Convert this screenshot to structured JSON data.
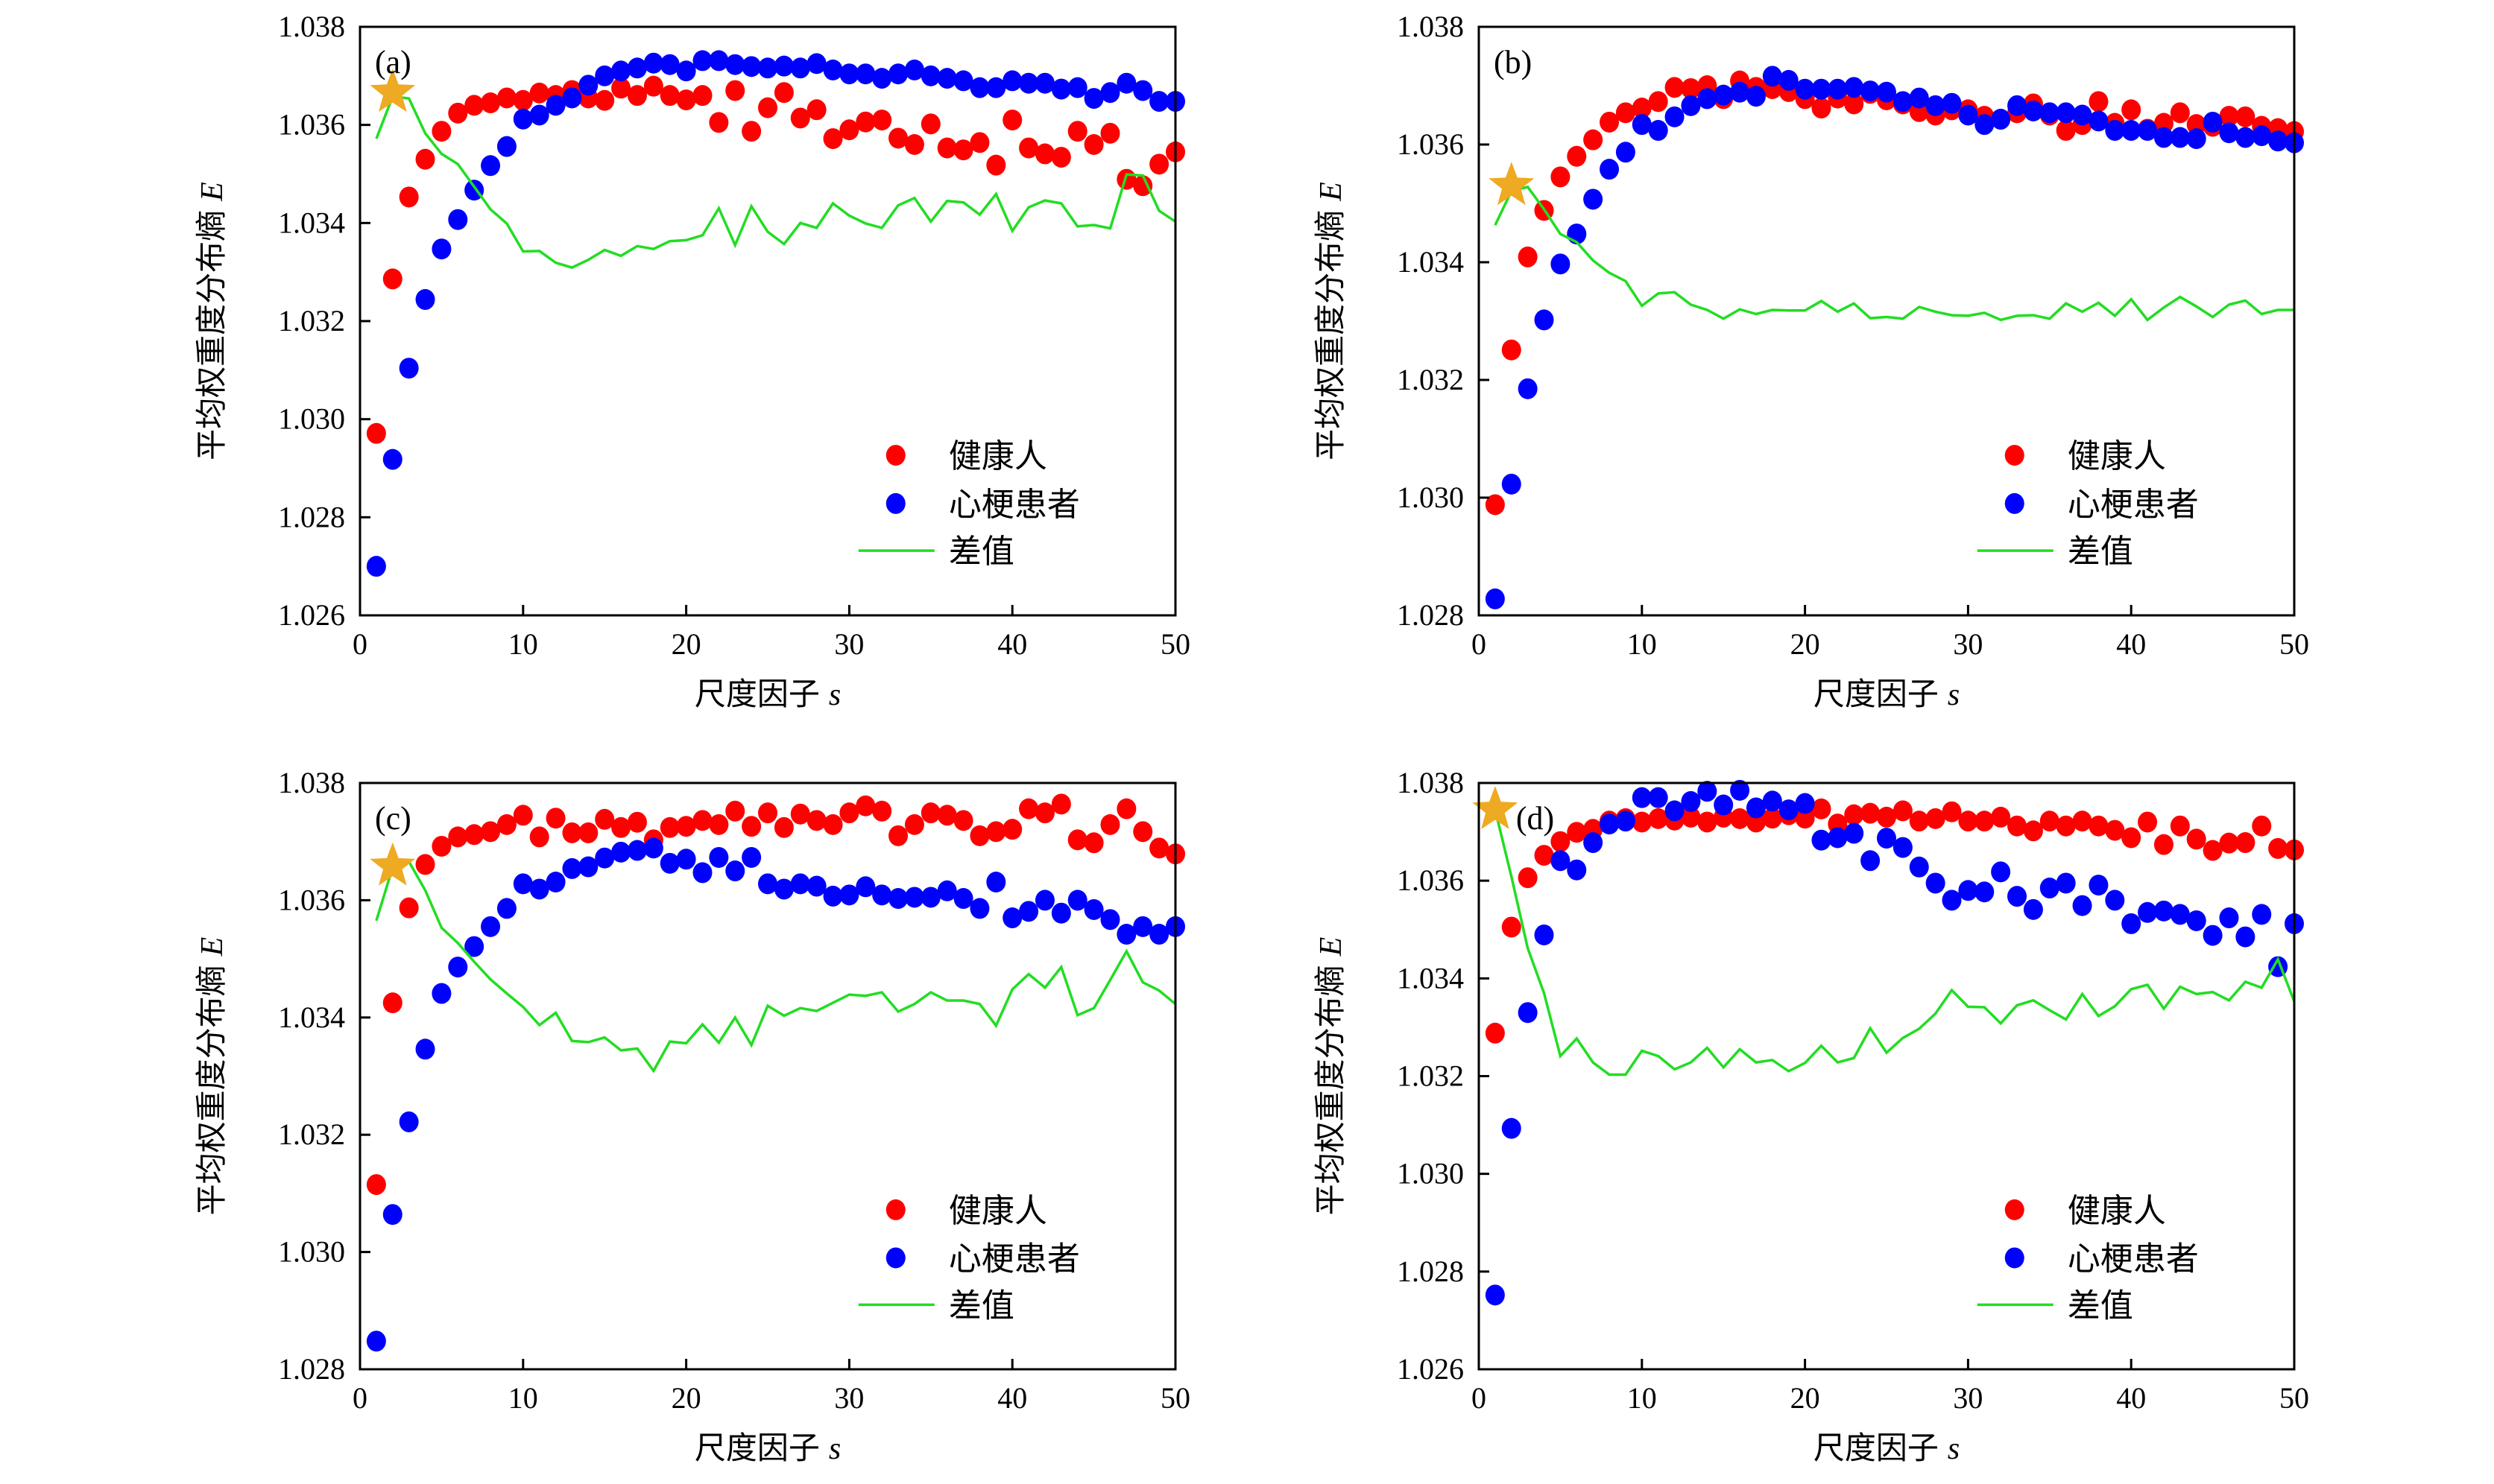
{
  "chart_data": [
    {
      "type": "scatter",
      "panel_label": "(a)",
      "xlabel": "尺度因子",
      "xlabel_var": "s",
      "ylabel": "平均权重度分布熵",
      "ylabel_var": "E",
      "xlim": [
        0,
        50
      ],
      "ylim": [
        1.026,
        1.038
      ],
      "xticks": [
        "0",
        "10",
        "20",
        "30",
        "40",
        "50"
      ],
      "yticks": [
        "1.026",
        "1.028",
        "1.030",
        "1.032",
        "1.034",
        "1.036",
        "1.038"
      ],
      "legend": "lower-right",
      "grid": false,
      "x": [
        1,
        2,
        3,
        4,
        5,
        6,
        7,
        8,
        9,
        10,
        11,
        12,
        13,
        14,
        15,
        16,
        17,
        18,
        19,
        20,
        21,
        22,
        23,
        24,
        25,
        26,
        27,
        28,
        29,
        30,
        31,
        32,
        33,
        34,
        35,
        36,
        37,
        38,
        39,
        40,
        41,
        42,
        43,
        44,
        45,
        46,
        47,
        48,
        49,
        50
      ],
      "series": [
        {
          "name": "健康人",
          "kind": "scatter",
          "color": "#ff0000",
          "values": [
            1.02971,
            1.03286,
            1.03453,
            1.0353,
            1.03587,
            1.03624,
            1.0364,
            1.03645,
            1.03655,
            1.0365,
            1.03665,
            1.0366,
            1.0367,
            1.03655,
            1.0365,
            1.03675,
            1.0366,
            1.03679,
            1.0366,
            1.03651,
            1.0366,
            1.03605,
            1.0367,
            1.03587,
            1.03635,
            1.03666,
            1.03614,
            1.03631,
            1.03572,
            1.0359,
            1.03606,
            1.0361,
            1.03573,
            1.0356,
            1.03602,
            1.03553,
            1.03549,
            1.03564,
            1.03518,
            1.0361,
            1.03553,
            1.03541,
            1.03534,
            1.03587,
            1.0356,
            1.03583,
            1.03489,
            1.03476,
            1.0352,
            1.03545
          ]
        },
        {
          "name": "心梗患者",
          "kind": "scatter",
          "color": "#0000ff",
          "values": [
            1.027,
            1.02918,
            1.03104,
            1.03244,
            1.03347,
            1.03407,
            1.03467,
            1.03517,
            1.03556,
            1.03612,
            1.0362,
            1.0364,
            1.03655,
            1.03681,
            1.037,
            1.0371,
            1.03716,
            1.03726,
            1.03723,
            1.0371,
            1.03731,
            1.03731,
            1.03723,
            1.03719,
            1.03716,
            1.0372,
            1.03716,
            1.03725,
            1.03712,
            1.03704,
            1.03704,
            1.03695,
            1.03704,
            1.03712,
            1.037,
            1.03695,
            1.0369,
            1.03676,
            1.03676,
            1.0369,
            1.03685,
            1.03685,
            1.03673,
            1.03676,
            1.03654,
            1.03666,
            1.03685,
            1.0367,
            1.03648,
            1.03648
          ]
        },
        {
          "name": "差值",
          "kind": "line",
          "color": "#22dd22",
          "values": [
            1.03572,
            1.03658,
            1.03654,
            1.03583,
            1.03541,
            1.0352,
            1.03474,
            1.03428,
            1.03399,
            1.03342,
            1.03343,
            1.03319,
            1.03309,
            1.03325,
            1.03345,
            1.03333,
            1.03353,
            1.03347,
            1.03363,
            1.03365,
            1.03375,
            1.0343,
            1.03355,
            1.03434,
            1.03382,
            1.03357,
            1.034,
            1.0339,
            1.0344,
            1.03415,
            1.03399,
            1.0339,
            1.03436,
            1.03451,
            1.03403,
            1.03445,
            1.03442,
            1.03417,
            1.03459,
            1.03384,
            1.03432,
            1.03446,
            1.0344,
            1.03393,
            1.03396,
            1.03389,
            1.03499,
            1.03497,
            1.03425,
            1.03403
          ]
        }
      ],
      "star": {
        "x": 2,
        "y": 1.03666,
        "color": "#eeaa22"
      }
    },
    {
      "type": "scatter",
      "panel_label": "(b)",
      "xlabel": "尺度因子",
      "xlabel_var": "s",
      "ylabel": "平均权重度分布熵",
      "ylabel_var": "E",
      "xlim": [
        0,
        50
      ],
      "ylim": [
        1.028,
        1.038
      ],
      "xticks": [
        "0",
        "10",
        "20",
        "30",
        "40",
        "50"
      ],
      "yticks": [
        "1.028",
        "1.030",
        "1.032",
        "1.034",
        "1.036",
        "1.038"
      ],
      "legend": "lower-right",
      "grid": false,
      "x": [
        1,
        2,
        3,
        4,
        5,
        6,
        7,
        8,
        9,
        10,
        11,
        12,
        13,
        14,
        15,
        16,
        17,
        18,
        19,
        20,
        21,
        22,
        23,
        24,
        25,
        26,
        27,
        28,
        29,
        30,
        31,
        32,
        33,
        34,
        35,
        36,
        37,
        38,
        39,
        40,
        41,
        42,
        43,
        44,
        45,
        46,
        47,
        48,
        49,
        50
      ],
      "series": [
        {
          "name": "健康人",
          "kind": "scatter",
          "color": "#ff0000",
          "values": [
            1.02988,
            1.03251,
            1.03409,
            1.03488,
            1.03545,
            1.0358,
            1.03608,
            1.03638,
            1.03654,
            1.03662,
            1.03673,
            1.03697,
            1.03695,
            1.037,
            1.03678,
            1.03708,
            1.03697,
            1.03695,
            1.0369,
            1.03678,
            1.03662,
            1.03679,
            1.03669,
            1.03687,
            1.03676,
            1.03669,
            1.03656,
            1.0365,
            1.03659,
            1.03659,
            1.03648,
            1.03643,
            1.03654,
            1.03669,
            1.0365,
            1.03624,
            1.03634,
            1.03673,
            1.03636,
            1.03659,
            1.03626,
            1.03636,
            1.03654,
            1.03634,
            1.03631,
            1.03648,
            1.03647,
            1.03631,
            1.03627,
            1.03622
          ]
        },
        {
          "name": "心梗患者",
          "kind": "scatter",
          "color": "#0000ff",
          "values": [
            1.02828,
            1.03023,
            1.03185,
            1.03302,
            1.03397,
            1.03448,
            1.03507,
            1.03558,
            1.03587,
            1.03634,
            1.03624,
            1.03647,
            1.03666,
            1.03678,
            1.03684,
            1.03689,
            1.03682,
            1.03716,
            1.03709,
            1.03694,
            1.03694,
            1.03694,
            1.03697,
            1.03691,
            1.03689,
            1.03673,
            1.03679,
            1.03666,
            1.0367,
            1.0365,
            1.03634,
            1.03643,
            1.03666,
            1.03657,
            1.03654,
            1.03654,
            1.0365,
            1.0364,
            1.03624,
            1.03624,
            1.03624,
            1.03612,
            1.03612,
            1.0361,
            1.03638,
            1.0362,
            1.03612,
            1.03615,
            1.03606,
            1.03603
          ]
        },
        {
          "name": "差值",
          "kind": "line",
          "color": "#22dd22",
          "values": [
            1.03463,
            1.03521,
            1.03528,
            1.0349,
            1.03448,
            1.03434,
            1.03403,
            1.03382,
            1.03368,
            1.03326,
            1.03347,
            1.03349,
            1.03328,
            1.03319,
            1.03304,
            1.0332,
            1.03312,
            1.03319,
            1.03318,
            1.03318,
            1.03334,
            1.03316,
            1.0333,
            1.03305,
            1.03307,
            1.03304,
            1.03324,
            1.03316,
            1.0331,
            1.03309,
            1.03314,
            1.03302,
            1.03309,
            1.0331,
            1.03304,
            1.0333,
            1.03316,
            1.03331,
            1.03309,
            1.03337,
            1.03302,
            1.03323,
            1.03341,
            1.03325,
            1.03307,
            1.03328,
            1.03335,
            1.03312,
            1.03319,
            1.03319
          ]
        }
      ],
      "star": {
        "x": 2,
        "y": 1.0353,
        "color": "#eeaa22"
      }
    },
    {
      "type": "scatter",
      "panel_label": "(c)",
      "xlabel": "尺度因子",
      "xlabel_var": "s",
      "ylabel": "平均权重度分布熵",
      "ylabel_var": "E",
      "xlim": [
        0,
        50
      ],
      "ylim": [
        1.028,
        1.038
      ],
      "xticks": [
        "0",
        "10",
        "20",
        "30",
        "40",
        "50"
      ],
      "yticks": [
        "1.028",
        "1.030",
        "1.032",
        "1.034",
        "1.036",
        "1.038"
      ],
      "legend": "lower-right",
      "grid": false,
      "x": [
        1,
        2,
        3,
        4,
        5,
        6,
        7,
        8,
        9,
        10,
        11,
        12,
        13,
        14,
        15,
        16,
        17,
        18,
        19,
        20,
        21,
        22,
        23,
        24,
        25,
        26,
        27,
        28,
        29,
        30,
        31,
        32,
        33,
        34,
        35,
        36,
        37,
        38,
        39,
        40,
        41,
        42,
        43,
        44,
        45,
        46,
        47,
        48,
        49,
        50
      ],
      "series": [
        {
          "name": "健康人",
          "kind": "scatter",
          "color": "#ff0000",
          "values": [
            1.03115,
            1.03425,
            1.03587,
            1.03661,
            1.03692,
            1.03708,
            1.03712,
            1.03717,
            1.03729,
            1.03745,
            1.03708,
            1.0374,
            1.03715,
            1.03715,
            1.03738,
            1.03724,
            1.03733,
            1.03703,
            1.03724,
            1.03726,
            1.03736,
            1.03729,
            1.03752,
            1.03726,
            1.03749,
            1.03724,
            1.03747,
            1.03736,
            1.03729,
            1.03749,
            1.03761,
            1.03752,
            1.0371,
            1.03729,
            1.03749,
            1.03745,
            1.03736,
            1.0371,
            1.03717,
            1.03721,
            1.03756,
            1.03749,
            1.03764,
            1.03703,
            1.03698,
            1.03729,
            1.03756,
            1.03717,
            1.03689,
            1.03679
          ]
        },
        {
          "name": "心梗患者",
          "kind": "scatter",
          "color": "#0000ff",
          "values": [
            1.02848,
            1.03064,
            1.03222,
            1.03346,
            1.03441,
            1.03486,
            1.03521,
            1.03555,
            1.03586,
            1.03628,
            1.03619,
            1.03631,
            1.03654,
            1.03657,
            1.03672,
            1.03682,
            1.03685,
            1.03689,
            1.03663,
            1.0367,
            1.03647,
            1.03673,
            1.0365,
            1.03673,
            1.03628,
            1.03619,
            1.03628,
            1.03624,
            1.03607,
            1.03609,
            1.03623,
            1.03609,
            1.03603,
            1.03605,
            1.03605,
            1.03616,
            1.03603,
            1.03586,
            1.03631,
            1.0357,
            1.03581,
            1.036,
            1.03578,
            1.036,
            1.03584,
            1.03567,
            1.03542,
            1.03555,
            1.03542,
            1.03555
          ]
        },
        {
          "name": "差值",
          "kind": "line",
          "color": "#22dd22",
          "values": [
            1.03565,
            1.03656,
            1.03666,
            1.03617,
            1.03553,
            1.03527,
            1.03495,
            1.03465,
            1.03441,
            1.03418,
            1.03387,
            1.03408,
            1.0336,
            1.03358,
            1.03366,
            1.03344,
            1.03347,
            1.03309,
            1.03359,
            1.03356,
            1.03388,
            1.03357,
            1.034,
            1.03353,
            1.0342,
            1.03403,
            1.03416,
            1.03411,
            1.03425,
            1.03439,
            1.03437,
            1.03443,
            1.0341,
            1.03423,
            1.03443,
            1.03429,
            1.03429,
            1.03423,
            1.03386,
            1.03448,
            1.03474,
            1.03451,
            1.03486,
            1.03404,
            1.03416,
            1.03464,
            1.03513,
            1.0346,
            1.03446,
            1.03423
          ]
        }
      ],
      "star": {
        "x": 2,
        "y": 1.03658,
        "color": "#eeaa22"
      }
    },
    {
      "type": "scatter",
      "panel_label": "(d)",
      "xlabel": "尺度因子",
      "xlabel_var": "s",
      "ylabel": "平均权重度分布熵",
      "ylabel_var": "E",
      "xlim": [
        0,
        50
      ],
      "ylim": [
        1.026,
        1.038
      ],
      "xticks": [
        "0",
        "10",
        "20",
        "30",
        "40",
        "50"
      ],
      "yticks": [
        "1.026",
        "1.028",
        "1.030",
        "1.032",
        "1.034",
        "1.036",
        "1.038"
      ],
      "legend": "lower-right",
      "grid": false,
      "x": [
        1,
        2,
        3,
        4,
        5,
        6,
        7,
        8,
        9,
        10,
        11,
        12,
        13,
        14,
        15,
        16,
        17,
        18,
        19,
        20,
        21,
        22,
        23,
        24,
        25,
        26,
        27,
        28,
        29,
        30,
        31,
        32,
        33,
        34,
        35,
        36,
        37,
        38,
        39,
        40,
        41,
        42,
        43,
        44,
        45,
        46,
        47,
        48,
        49,
        50
      ],
      "series": [
        {
          "name": "健康人",
          "kind": "scatter",
          "color": "#ff0000",
          "values": [
            1.03288,
            1.03505,
            1.03606,
            1.03652,
            1.0368,
            1.03699,
            1.03705,
            1.03722,
            1.03727,
            1.0372,
            1.03727,
            1.03724,
            1.0373,
            1.0372,
            1.0373,
            1.03727,
            1.0372,
            1.03728,
            1.03735,
            1.03728,
            1.03747,
            1.03716,
            1.03735,
            1.03738,
            1.0373,
            1.03743,
            1.03722,
            1.03727,
            1.03741,
            1.03722,
            1.03722,
            1.0373,
            1.03712,
            1.03702,
            1.03722,
            1.03712,
            1.03722,
            1.03712,
            1.03703,
            1.03688,
            1.0372,
            1.03674,
            1.03712,
            1.03685,
            1.03662,
            1.03677,
            1.03678,
            1.03712,
            1.03666,
            1.03663
          ]
        },
        {
          "name": "心梗患者",
          "kind": "scatter",
          "color": "#0000ff",
          "values": [
            1.02752,
            1.03093,
            1.0333,
            1.03489,
            1.03641,
            1.03622,
            1.03678,
            1.03716,
            1.03722,
            1.0377,
            1.0377,
            1.03743,
            1.03762,
            1.03783,
            1.03755,
            1.03785,
            1.03749,
            1.03763,
            1.03745,
            1.03758,
            1.03683,
            1.03688,
            1.03697,
            1.03641,
            1.03687,
            1.03668,
            1.03628,
            1.03595,
            1.0356,
            1.0358,
            1.03577,
            1.03618,
            1.03568,
            1.03541,
            1.03585,
            1.03595,
            1.03549,
            1.03591,
            1.0356,
            1.03512,
            1.03535,
            1.03538,
            1.03531,
            1.03518,
            1.03488,
            1.03524,
            1.03485,
            1.03531,
            1.03424,
            1.03512
          ]
        },
        {
          "name": "差值",
          "kind": "line",
          "color": "#22dd22",
          "values": [
            1.03745,
            1.03608,
            1.03462,
            1.0337,
            1.03241,
            1.03277,
            1.03228,
            1.03203,
            1.03203,
            1.03252,
            1.03241,
            1.03214,
            1.03228,
            1.03258,
            1.03218,
            1.03255,
            1.03228,
            1.03233,
            1.0321,
            1.03227,
            1.03262,
            1.03228,
            1.03237,
            1.03298,
            1.03248,
            1.03278,
            1.03297,
            1.03328,
            1.03376,
            1.03342,
            1.03341,
            1.03308,
            1.03345,
            1.03355,
            1.03335,
            1.03316,
            1.03368,
            1.03323,
            1.03343,
            1.03378,
            1.03387,
            1.03338,
            1.03383,
            1.03368,
            1.03372,
            1.03355,
            1.03393,
            1.03381,
            1.03439,
            1.03353
          ]
        }
      ],
      "star": {
        "x": 1,
        "y": 1.03745,
        "color": "#eeaa22"
      }
    }
  ]
}
